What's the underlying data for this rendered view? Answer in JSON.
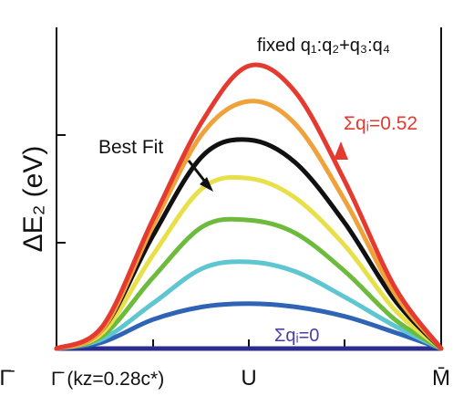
{
  "chart_data": {
    "type": "line",
    "title": "",
    "xlabel": "",
    "ylabel": "ΔE₂ (eV)",
    "x_tick_labels": [
      "Γ̄",
      "Γ̄ (kz=0.28c*)",
      "U",
      "M̄"
    ],
    "annotations": {
      "top_right": "fixed q₁:q₂+q₃:q₄",
      "best_fit": "Best Fit",
      "sum_max": "Σqᵢ=0.52",
      "sum_min": "Σqᵢ=0"
    },
    "x_range": [
      0,
      1
    ],
    "y_range": [
      0,
      1
    ],
    "series": [
      {
        "color": "#2b2d8f",
        "x": [
          0,
          1
        ],
        "y": [
          0,
          0
        ]
      },
      {
        "color": "#2f63b5",
        "x": [
          0,
          0.12,
          0.25,
          0.38,
          0.5,
          0.62,
          0.75,
          0.88,
          1
        ],
        "y": [
          0,
          0.02,
          0.09,
          0.13,
          0.14,
          0.13,
          0.1,
          0.05,
          0
        ]
      },
      {
        "color": "#5ec6d1",
        "x": [
          0,
          0.12,
          0.25,
          0.38,
          0.5,
          0.62,
          0.75,
          0.88,
          1
        ],
        "y": [
          0,
          0.03,
          0.14,
          0.25,
          0.27,
          0.24,
          0.16,
          0.07,
          0
        ]
      },
      {
        "color": "#6dbb3c",
        "x": [
          0,
          0.12,
          0.25,
          0.38,
          0.5,
          0.62,
          0.75,
          0.88,
          1
        ],
        "y": [
          0,
          0.04,
          0.22,
          0.38,
          0.4,
          0.36,
          0.24,
          0.09,
          0
        ]
      },
      {
        "color": "#e8e04a",
        "x": [
          0,
          0.12,
          0.25,
          0.38,
          0.5,
          0.62,
          0.75,
          0.88,
          1
        ],
        "y": [
          0,
          0.05,
          0.29,
          0.5,
          0.53,
          0.47,
          0.32,
          0.12,
          0
        ]
      },
      {
        "color": "#111111",
        "x": [
          0,
          0.12,
          0.25,
          0.38,
          0.5,
          0.62,
          0.75,
          0.88,
          1
        ],
        "y": [
          0,
          0.06,
          0.35,
          0.6,
          0.65,
          0.58,
          0.39,
          0.15,
          0
        ]
      },
      {
        "color": "#f0a23a",
        "x": [
          0,
          0.12,
          0.25,
          0.38,
          0.5,
          0.62,
          0.75,
          0.88,
          1
        ],
        "y": [
          0,
          0.06,
          0.38,
          0.67,
          0.77,
          0.7,
          0.46,
          0.17,
          0
        ]
      },
      {
        "color": "#e53a2f",
        "x": [
          0,
          0.12,
          0.25,
          0.38,
          0.5,
          0.62,
          0.75,
          0.88,
          1
        ],
        "y": [
          0,
          0.07,
          0.4,
          0.71,
          0.88,
          0.8,
          0.52,
          0.19,
          0
        ]
      }
    ],
    "grid": false,
    "legend": "none"
  }
}
